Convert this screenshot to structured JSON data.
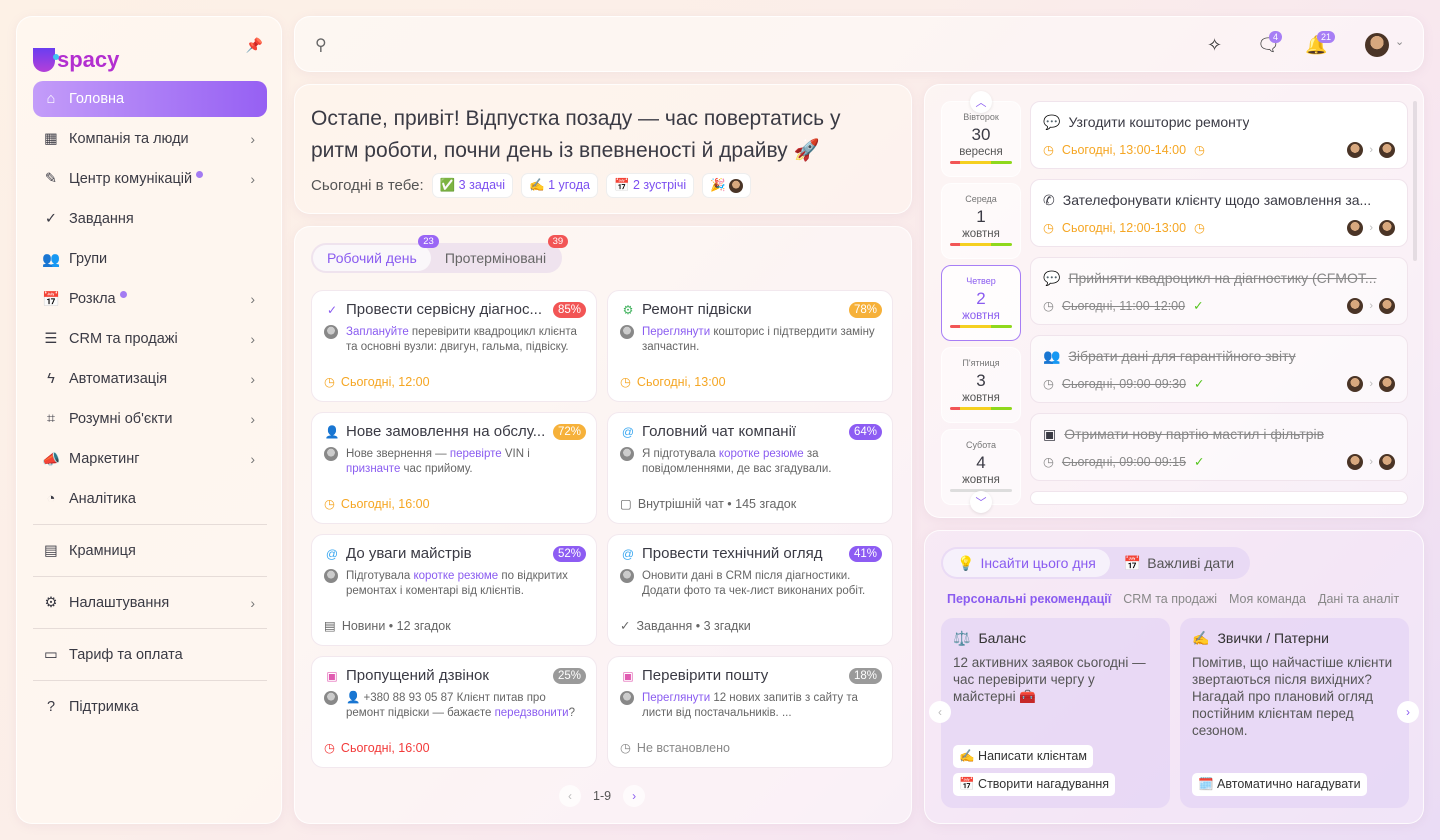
{
  "colors": {
    "accent": "#8a5cf0",
    "red": "#f25555",
    "orange": "#f6b13a",
    "purple": "#8d5cf3",
    "gray": "#9a9a9a",
    "orange_text": "#f5a623",
    "red_text": "#f23a3a",
    "green_check": "#52c41a"
  },
  "sidebar": {
    "logo": "spacy",
    "pin_icon": "pin-icon",
    "items": [
      {
        "label": "Головна",
        "icon": "⌂",
        "name": "home",
        "active": true
      },
      {
        "label": "Компанія та люди",
        "icon": "▦",
        "name": "company",
        "chevron": true
      },
      {
        "label": "Центр комунікацій",
        "icon": "✎",
        "name": "communications",
        "chevron": true,
        "dot": true
      },
      {
        "label": "Завдання",
        "icon": "✓",
        "name": "tasks"
      },
      {
        "label": "Групи",
        "icon": "👥",
        "name": "groups"
      },
      {
        "label": "Розкла",
        "icon": "📅",
        "name": "schedule",
        "chevron": true,
        "dot": true
      },
      {
        "label": "CRM та продажі",
        "icon": "☰",
        "name": "crm",
        "chevron": true
      },
      {
        "label": "Автоматизація",
        "icon": "ϟ",
        "name": "automation",
        "chevron": true
      },
      {
        "label": "Розумні об'єкти",
        "icon": "⌗",
        "name": "smart-objects",
        "chevron": true
      },
      {
        "label": "Маркетинг",
        "icon": "📣",
        "name": "marketing",
        "chevron": true
      },
      {
        "label": "Аналітика",
        "icon": "◔",
        "name": "analytics"
      },
      {
        "label": "Крамниця",
        "icon": "▤",
        "name": "store"
      },
      {
        "label": "Налаштування",
        "icon": "⚙",
        "name": "settings",
        "chevron": true
      },
      {
        "label": "Тариф та оплата",
        "icon": "▭",
        "name": "billing"
      },
      {
        "label": "Підтримка",
        "icon": "?",
        "name": "support"
      }
    ]
  },
  "topbar": {
    "messages_count": "4",
    "notifications_count": "21"
  },
  "greeting": {
    "title": "Остапе, привіт! Відпустка позаду — час повертатись у ритм роботи, почни день із впевненості й драйву 🚀",
    "today_label": "Сьогодні в тебе:",
    "chips": [
      "✅ 3 задачі",
      "✍️ 1 угода",
      "📅 2 зустрічі",
      "🎉"
    ]
  },
  "tasks": {
    "tabs": [
      {
        "label": "Робочий день",
        "count": "23",
        "active": true
      },
      {
        "label": "Протерміновані",
        "count": "39"
      }
    ],
    "cards": [
      {
        "icon": "✓",
        "icon_color": "#8a5cf0",
        "title": "Провести сервісну діагнос...",
        "pct": "85%",
        "pct_color": "#f25555",
        "desc": [
          {
            "t": "Заплануйте",
            "l": true
          },
          {
            "t": " перевірити квадроцикл клієнта та основні вузли: двигун, гальма, підвіску."
          }
        ],
        "foot": "Сьогодні, 12:00",
        "foot_icon": "◷",
        "foot_color": "#f5a623"
      },
      {
        "icon": "⚙",
        "icon_color": "#3db05a",
        "title": "Ремонт підвіски",
        "pct": "78%",
        "pct_color": "#f6b13a",
        "desc": [
          {
            "t": "Переглянути",
            "l": true
          },
          {
            "t": " кошторис і підтвердити заміну запчастин."
          }
        ],
        "foot": "Сьогодні, 13:00",
        "foot_icon": "◷",
        "foot_color": "#f5a623"
      },
      {
        "icon": "👤",
        "icon_color": "#f25555",
        "title": "Нове замовлення на обслу...",
        "pct": "72%",
        "pct_color": "#f6b13a",
        "desc": [
          {
            "t": "Нове звернення — "
          },
          {
            "t": "перевірте",
            "l": true
          },
          {
            "t": " VIN і "
          },
          {
            "t": "призначте",
            "l": true
          },
          {
            "t": " час прийому."
          }
        ],
        "foot": "Сьогодні, 16:00",
        "foot_icon": "◷",
        "foot_color": "#f5a623"
      },
      {
        "icon": "@",
        "icon_color": "#3aa7f0",
        "title": "Головний чат компанії",
        "pct": "64%",
        "pct_color": "#8d5cf3",
        "desc": [
          {
            "t": "Я підготувала "
          },
          {
            "t": "коротке резюме",
            "l": true
          },
          {
            "t": " за повідомленнями, де вас згадували."
          }
        ],
        "foot": "Внутрішній чат • 145 згадок",
        "foot_icon": "▢",
        "foot_color": "#666"
      },
      {
        "icon": "@",
        "icon_color": "#3aa7f0",
        "title": "До уваги майстрів",
        "pct": "52%",
        "pct_color": "#8d5cf3",
        "desc": [
          {
            "t": "Підготувала "
          },
          {
            "t": "коротке резюме",
            "l": true
          },
          {
            "t": " по відкритих ремонтах і коментарі від клієнтів."
          }
        ],
        "foot": "Новини • 12 згадок",
        "foot_icon": "▤",
        "foot_color": "#666"
      },
      {
        "icon": "@",
        "icon_color": "#3aa7f0",
        "title": "Провести технічний огляд",
        "pct": "41%",
        "pct_color": "#8d5cf3",
        "desc": [
          {
            "t": "Оновити дані в CRM після діагностики. Додати фото та чек-лист виконаних робіт."
          }
        ],
        "foot": "Завдання • 3 згадки",
        "foot_icon": "✓",
        "foot_color": "#666"
      },
      {
        "icon": "▣",
        "icon_color": "#e05ab0",
        "title": "Пропущений дзвінок",
        "pct": "25%",
        "pct_color": "#9a9a9a",
        "desc": [
          {
            "t": "👤 +380 88 93 05 87 "
          },
          {
            "t": "Клієнт питав про ремонт підвіски — бажаєте "
          },
          {
            "t": "передзвонити",
            "l": true
          },
          {
            "t": "?"
          }
        ],
        "foot": "Сьогодні, 16:00",
        "foot_icon": "◷",
        "foot_color": "#f23a3a"
      },
      {
        "icon": "▣",
        "icon_color": "#e05ab0",
        "title": "Перевірити пошту",
        "pct": "18%",
        "pct_color": "#9a9a9a",
        "desc": [
          {
            "t": "Переглянути",
            "l": true
          },
          {
            "t": " 12 нових запитів з сайту та листи від постачальників. ..."
          }
        ],
        "foot": "Не встановлено",
        "foot_icon": "◷",
        "foot_color": "#888"
      }
    ],
    "pager": "1-9"
  },
  "calendar": {
    "days": [
      {
        "weekday": "Вівторок",
        "day": "30",
        "month": "вересня"
      },
      {
        "weekday": "Середа",
        "day": "1",
        "month": "жовтня"
      },
      {
        "weekday": "Четвер",
        "day": "2",
        "month": "жовтня",
        "selected": true
      },
      {
        "weekday": "П'ятниця",
        "day": "3",
        "month": "жовтня"
      },
      {
        "weekday": "Субота",
        "day": "4",
        "month": "жовтня",
        "empty": true
      }
    ],
    "events": [
      {
        "icon": "💬",
        "title": "Узгодити кошторис ремонту",
        "time": "Сьогодні, 13:00-14:00",
        "done": false
      },
      {
        "icon": "✆",
        "title": "Зателефонувати клієнту щодо замовлення за...",
        "time": "Сьогодні, 12:00-13:00",
        "done": false
      },
      {
        "icon": "💬",
        "title": "Прийняти квадроцикл на діагностику (CFMOT...",
        "time": "Сьогодні, 11:00-12:00",
        "done": true
      },
      {
        "icon": "👥",
        "title": "Зібрати дані для гарантійного звіту",
        "time": "Сьогодні, 09:00-09:30",
        "done": true
      },
      {
        "icon": "▣",
        "title": "Отримати нову партію мастил і фільтрів",
        "time": "Сьогодні, 09:00-09:15",
        "done": true
      }
    ]
  },
  "insights": {
    "tabs": [
      {
        "label": "Інсайти цього дня",
        "icon": "💡",
        "active": true
      },
      {
        "label": "Важливі дати",
        "icon": "📅"
      }
    ],
    "subtabs": [
      "Персональні рекомендації",
      "CRM та продажі",
      "Моя команда",
      "Дані та аналіт"
    ],
    "cards": [
      {
        "icon": "⚖️",
        "title": "Баланс",
        "text": "12 активних заявок сьогодні — час перевірити чергу у майстерні 🧰",
        "actions": [
          "✍️ Написати клієнтам",
          "📅 Створити нагадування"
        ]
      },
      {
        "icon": "✍️",
        "title": "Звички / Патерни",
        "text": "Помітив, що найчастіше клієнти звертаються після вихідних? Нагадай про плановий огляд постійним клієнтам перед сезоном.",
        "actions": [
          "🗓️ Автоматично нагадувати"
        ]
      }
    ]
  }
}
